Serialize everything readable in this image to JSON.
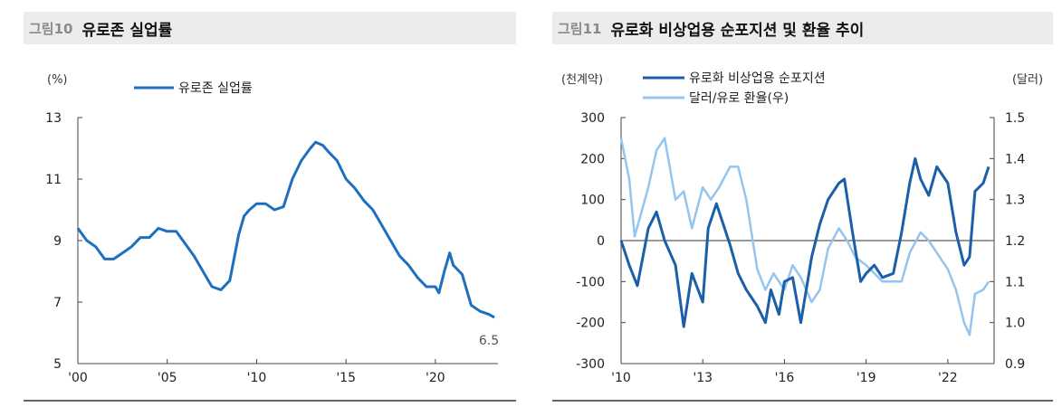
{
  "charts": [
    {
      "fig_label": "그림10",
      "title": "유로존 실업률",
      "y_unit": "(%)"
    },
    {
      "fig_label": "그림11",
      "title": "유로화 비상업용 순포지션 및 환율 추이",
      "y_unit_left": "(천계약)",
      "y_unit_right": "(달러)"
    }
  ],
  "chart_data": [
    {
      "type": "line",
      "title": "유로존 실업률",
      "ylabel": "(%)",
      "ylim": [
        5,
        13
      ],
      "yticks": [
        "5",
        "7",
        "9",
        "11",
        "13"
      ],
      "xlim": [
        2000,
        2023.5
      ],
      "xticks": [
        {
          "x": 2000,
          "label": "'00"
        },
        {
          "x": 2005,
          "label": "'05"
        },
        {
          "x": 2010,
          "label": "'10"
        },
        {
          "x": 2015,
          "label": "'15"
        },
        {
          "x": 2020,
          "label": "'20"
        }
      ],
      "color": "#1f6fbf",
      "legend": "top",
      "annotation": {
        "text": "6.5"
      },
      "series": [
        {
          "name": "유로존 실업률",
          "x": [
            2000,
            2000.5,
            2001,
            2001.5,
            2002,
            2002.5,
            2003,
            2003.5,
            2004,
            2004.5,
            2005,
            2005.5,
            2006,
            2006.5,
            2007,
            2007.5,
            2008,
            2008.5,
            2009,
            2009.3,
            2009.6,
            2010,
            2010.5,
            2011,
            2011.5,
            2012,
            2012.5,
            2013,
            2013.3,
            2013.7,
            2014,
            2014.5,
            2015,
            2015.5,
            2016,
            2016.5,
            2017,
            2017.5,
            2018,
            2018.5,
            2019,
            2019.5,
            2020,
            2020.2,
            2020.5,
            2020.8,
            2021,
            2021.5,
            2022,
            2022.5,
            2023,
            2023.3
          ],
          "y": [
            9.4,
            9.0,
            8.8,
            8.4,
            8.4,
            8.6,
            8.8,
            9.1,
            9.1,
            9.4,
            9.3,
            9.3,
            8.9,
            8.5,
            8.0,
            7.5,
            7.4,
            7.7,
            9.2,
            9.8,
            10.0,
            10.2,
            10.2,
            10.0,
            10.1,
            11.0,
            11.6,
            12.0,
            12.2,
            12.1,
            11.9,
            11.6,
            11.0,
            10.7,
            10.3,
            10.0,
            9.5,
            9.0,
            8.5,
            8.2,
            7.8,
            7.5,
            7.5,
            7.3,
            8.0,
            8.6,
            8.2,
            7.9,
            6.9,
            6.7,
            6.6,
            6.5
          ]
        }
      ]
    },
    {
      "type": "line",
      "title": "유로화 비상업용 순포지션 및 환율 추이",
      "ylabel": "(천계약)",
      "y2label": "(달러)",
      "ylim": [
        -300,
        300
      ],
      "y2lim": [
        0.9,
        1.5
      ],
      "yticks": [
        "300",
        "200",
        "100",
        "0",
        "-100",
        "-200",
        "-300"
      ],
      "y2ticks": [
        "1.5",
        "1.4",
        "1.3",
        "1.2",
        "1.1",
        "1.0",
        "0.9"
      ],
      "xlim": [
        2010,
        2023.7
      ],
      "xticks": [
        {
          "x": 2010,
          "label": "'10"
        },
        {
          "x": 2013,
          "label": "'13"
        },
        {
          "x": 2016,
          "label": "'16"
        },
        {
          "x": 2019,
          "label": "'19"
        },
        {
          "x": 2022,
          "label": "'22"
        }
      ],
      "legend": "top",
      "series": [
        {
          "name": "유로화 비상업용 순포지션",
          "axis": "left",
          "color": "#1a5fa8",
          "x": [
            2010,
            2010.3,
            2010.6,
            2011,
            2011.3,
            2011.6,
            2012,
            2012.3,
            2012.6,
            2013,
            2013.2,
            2013.5,
            2013.8,
            2014,
            2014.3,
            2014.6,
            2015,
            2015.3,
            2015.5,
            2015.8,
            2016,
            2016.3,
            2016.6,
            2017,
            2017.3,
            2017.6,
            2018,
            2018.2,
            2018.5,
            2018.8,
            2019,
            2019.3,
            2019.6,
            2020,
            2020.3,
            2020.6,
            2020.8,
            2021,
            2021.3,
            2021.6,
            2022,
            2022.3,
            2022.6,
            2022.8,
            2023,
            2023.3,
            2023.5
          ],
          "y": [
            0,
            -60,
            -110,
            30,
            70,
            0,
            -60,
            -210,
            -80,
            -150,
            30,
            90,
            30,
            -10,
            -80,
            -120,
            -160,
            -200,
            -120,
            -180,
            -100,
            -90,
            -200,
            -40,
            40,
            100,
            140,
            150,
            20,
            -100,
            -80,
            -60,
            -90,
            -80,
            20,
            140,
            200,
            150,
            110,
            180,
            140,
            20,
            -60,
            -40,
            120,
            140,
            180
          ]
        },
        {
          "name": "달러/유로 환율(우)",
          "axis": "right",
          "color": "#93c5ef",
          "x": [
            2010,
            2010.3,
            2010.5,
            2011,
            2011.3,
            2011.6,
            2012,
            2012.3,
            2012.6,
            2013,
            2013.3,
            2013.6,
            2014,
            2014.3,
            2014.6,
            2015,
            2015.3,
            2015.6,
            2016,
            2016.3,
            2016.6,
            2017,
            2017.3,
            2017.6,
            2018,
            2018.3,
            2018.6,
            2019,
            2019.3,
            2019.6,
            2020,
            2020.3,
            2020.6,
            2021,
            2021.3,
            2021.6,
            2022,
            2022.3,
            2022.6,
            2022.8,
            2023,
            2023.3,
            2023.5
          ],
          "y": [
            1.45,
            1.35,
            1.21,
            1.33,
            1.42,
            1.45,
            1.3,
            1.32,
            1.23,
            1.33,
            1.3,
            1.33,
            1.38,
            1.38,
            1.3,
            1.13,
            1.08,
            1.12,
            1.08,
            1.14,
            1.11,
            1.05,
            1.08,
            1.18,
            1.23,
            1.2,
            1.16,
            1.14,
            1.12,
            1.1,
            1.1,
            1.1,
            1.17,
            1.22,
            1.2,
            1.17,
            1.13,
            1.08,
            1.0,
            0.97,
            1.07,
            1.08,
            1.1
          ]
        }
      ]
    }
  ]
}
